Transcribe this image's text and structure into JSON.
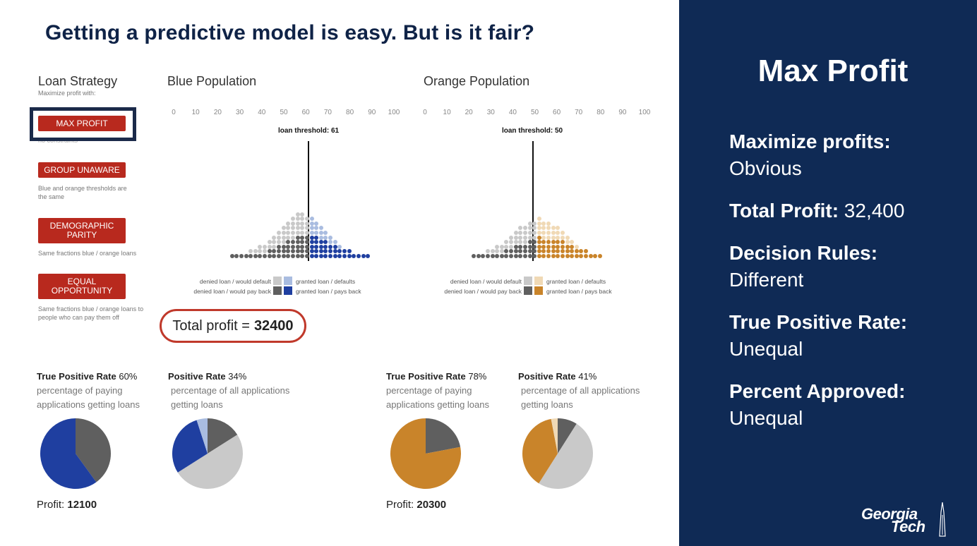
{
  "slide": {
    "title": "Getting a predictive model is  easy. But is it fair?"
  },
  "strategy": {
    "title": "Loan Strategy",
    "subtitle": "Maximize profit with:",
    "buttons": [
      {
        "label": "MAX PROFIT",
        "desc": "no constraints",
        "selected": true
      },
      {
        "label": "GROUP UNAWARE",
        "desc": "Blue and orange thresholds are the same"
      },
      {
        "label": "DEMOGRAPHIC PARITY",
        "desc": "Same fractions blue / orange loans"
      },
      {
        "label": "EQUAL OPPORTUNITY",
        "desc": "Same fractions blue / orange loans to people who can pay them off"
      }
    ]
  },
  "axis_ticks": [
    "0",
    "10",
    "20",
    "30",
    "40",
    "50",
    "60",
    "70",
    "80",
    "90",
    "100"
  ],
  "blue": {
    "title": "Blue Population",
    "threshold_label": "loan threshold: 61",
    "threshold": 61,
    "legend": {
      "denied_default": "denied loan / would default",
      "denied_payback": "denied loan / would pay back",
      "granted_default": "granted loan / defaults",
      "granted_payback": "granted loan / pays back"
    },
    "colors": {
      "denied_default": "#c9c9c9",
      "denied_payback": "#5f5f5f",
      "granted_default": "#a9bce0",
      "granted_payback": "#1f3fa0"
    },
    "tpr_title": "True Positive Rate",
    "tpr_value": "60%",
    "tpr_desc": "percentage of paying applications getting loans",
    "pr_title": "Positive Rate",
    "pr_value": "34%",
    "pr_desc": "percentage of all applications getting loans",
    "profit_label": "Profit:",
    "profit_value": "12100",
    "tpr_fraction": 0.6,
    "pr_fraction": 0.34
  },
  "orange": {
    "title": "Orange Population",
    "threshold_label": "loan threshold: 50",
    "threshold": 50,
    "legend": {
      "denied_default": "denied loan / would default",
      "denied_payback": "denied loan / would pay back",
      "granted_default": "granted loan / defaults",
      "granted_payback": "granted loan / pays back"
    },
    "colors": {
      "denied_default": "#c9c9c9",
      "denied_payback": "#5f5f5f",
      "granted_default": "#f0d9b5",
      "granted_payback": "#c9842a"
    },
    "tpr_title": "True Positive Rate",
    "tpr_value": "78%",
    "tpr_desc": "percentage of paying applications getting loans",
    "pr_title": "Positive Rate",
    "pr_value": "41%",
    "pr_desc": "percentage of all applications getting loans",
    "profit_label": "Profit:",
    "profit_value": "20300",
    "tpr_fraction": 0.78,
    "pr_fraction": 0.41
  },
  "total": {
    "label": "Total profit =",
    "value": "32400"
  },
  "panel": {
    "title": "Max Profit",
    "items": [
      {
        "key": "Maximize profits:",
        "value": "Obvious"
      },
      {
        "key": "Total Profit:",
        "value": "32,400"
      },
      {
        "key": "Decision Rules:",
        "value": "Different"
      },
      {
        "key": "True Positive Rate:",
        "value": "Unequal"
      },
      {
        "key": "Percent Approved:",
        "value": "Unequal"
      }
    ]
  },
  "logo": {
    "line1": "Georgia",
    "line2": "Tech"
  }
}
